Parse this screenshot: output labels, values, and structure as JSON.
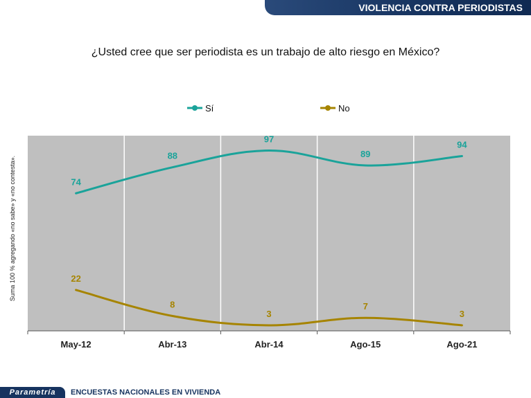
{
  "header": {
    "banner_title": "VIOLENCIA CONTRA PERIODISTAS"
  },
  "question": "¿Usted cree que ser periodista es un trabajo de alto riesgo en México?",
  "footer": {
    "brand": "Parametría",
    "survey": "ENCUESTAS NACIONALES EN VIVIENDA"
  },
  "chart_data": {
    "type": "line",
    "title": "¿Usted cree que ser periodista es un trabajo de alto riesgo en México?",
    "categories": [
      "May-12",
      "Abr-13",
      "Abr-14",
      "Ago-15",
      "Ago-21"
    ],
    "series": [
      {
        "name": "Sí",
        "values": [
          74,
          88,
          97,
          89,
          94
        ],
        "color": "#1aa39a"
      },
      {
        "name": "No",
        "values": [
          22,
          8,
          3,
          7,
          3
        ],
        "color": "#a68400"
      }
    ],
    "ylabel": "Suma 100 % agregando «no sabe» y «no contesta».",
    "xlabel": "",
    "ylim": [
      0,
      105
    ],
    "grid": "vertical",
    "legend": "top",
    "plot_background": "#bfbfbf"
  }
}
